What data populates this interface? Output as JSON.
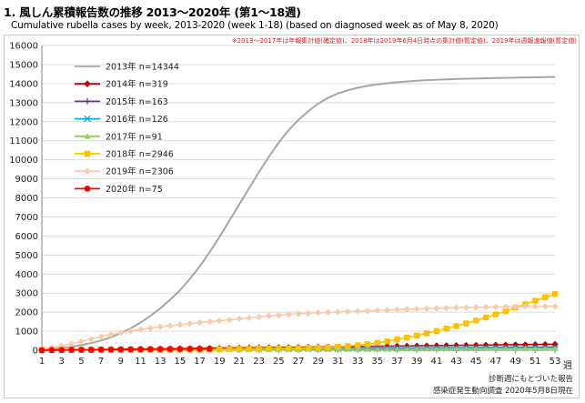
{
  "title": "1. 風しん累積報告数の推移  2013～2020年 (第1～18週)",
  "subtitle": "Cumulative rubella cases by week, 2013-2020 (week 1-18)  (based on diagnosed week as of May 8, 2020)",
  "note": "※2013～2017年は年報集計値(確定値)、2018年は2019年6月4日時点の集計値(暫定値)、2019年は週報速報値(暫定値)",
  "source_line1": "診断週にもとづいた報告",
  "source_line2": "感染症発生動向調査 2020年5月8日現在",
  "x_unit": "週",
  "chart_data": {
    "type": "line",
    "title": "1. 風しん累積報告数の推移  2013～2020年 (第1～18週)",
    "xlabel": "週",
    "ylabel": "",
    "xlim": [
      1,
      53
    ],
    "ylim": [
      0,
      16000
    ],
    "x_ticks": [
      1,
      3,
      5,
      7,
      9,
      11,
      13,
      15,
      17,
      19,
      21,
      23,
      25,
      27,
      29,
      31,
      33,
      35,
      37,
      39,
      41,
      43,
      45,
      47,
      49,
      51,
      53
    ],
    "y_ticks": [
      0,
      1000,
      2000,
      3000,
      4000,
      5000,
      6000,
      7000,
      8000,
      9000,
      10000,
      11000,
      12000,
      13000,
      14000,
      15000,
      16000
    ],
    "grid": true,
    "legend_position": "top-left",
    "series": [
      {
        "name": "2013年 n=14344",
        "color": "#a6a6a6",
        "marker": "line",
        "values": [
          40,
          70,
          110,
          180,
          270,
          380,
          510,
          680,
          900,
          1150,
          1450,
          1800,
          2200,
          2650,
          3150,
          3750,
          4400,
          5150,
          5950,
          6800,
          7650,
          8500,
          9350,
          10150,
          10900,
          11550,
          12100,
          12550,
          12950,
          13250,
          13480,
          13650,
          13780,
          13880,
          13960,
          14020,
          14070,
          14110,
          14150,
          14180,
          14200,
          14220,
          14240,
          14255,
          14270,
          14280,
          14290,
          14300,
          14310,
          14320,
          14330,
          14340,
          14344
        ]
      },
      {
        "name": "2014年 n=319",
        "color": "#c00000",
        "marker": "diamond",
        "values": [
          5,
          10,
          15,
          20,
          26,
          32,
          38,
          44,
          50,
          56,
          62,
          68,
          74,
          80,
          86,
          92,
          98,
          104,
          110,
          116,
          122,
          128,
          134,
          140,
          146,
          152,
          158,
          164,
          170,
          176,
          182,
          188,
          194,
          200,
          206,
          212,
          218,
          224,
          230,
          236,
          242,
          248,
          254,
          260,
          266,
          272,
          278,
          284,
          290,
          296,
          303,
          311,
          319
        ]
      },
      {
        "name": "2015年 n=163",
        "color": "#7030a0",
        "marker": "plus",
        "values": [
          3,
          6,
          9,
          12,
          15,
          18,
          21,
          24,
          27,
          30,
          33,
          36,
          39,
          42,
          45,
          48,
          51,
          54,
          57,
          60,
          63,
          66,
          69,
          72,
          75,
          78,
          81,
          84,
          87,
          90,
          93,
          96,
          99,
          102,
          105,
          108,
          111,
          114,
          117,
          120,
          123,
          126,
          129,
          132,
          135,
          138,
          141,
          144,
          147,
          150,
          155,
          159,
          163
        ]
      },
      {
        "name": "2016年 n=126",
        "color": "#00b0f0",
        "marker": "x",
        "values": [
          2,
          5,
          7,
          10,
          12,
          14,
          17,
          19,
          22,
          24,
          26,
          29,
          31,
          34,
          36,
          38,
          41,
          43,
          46,
          48,
          50,
          53,
          55,
          58,
          60,
          62,
          65,
          67,
          70,
          72,
          74,
          77,
          79,
          82,
          84,
          86,
          89,
          91,
          94,
          96,
          98,
          101,
          103,
          106,
          108,
          110,
          113,
          115,
          118,
          120,
          122,
          124,
          126
        ]
      },
      {
        "name": "2017年 n=91",
        "color": "#92d050",
        "marker": "triangle",
        "values": [
          2,
          3,
          5,
          7,
          9,
          10,
          12,
          14,
          16,
          17,
          19,
          21,
          23,
          24,
          26,
          28,
          30,
          31,
          33,
          35,
          37,
          38,
          40,
          42,
          44,
          45,
          47,
          49,
          51,
          52,
          54,
          56,
          58,
          59,
          61,
          63,
          65,
          66,
          68,
          70,
          72,
          73,
          75,
          77,
          79,
          80,
          82,
          84,
          86,
          87,
          89,
          90,
          91
        ]
      },
      {
        "name": "2018年 n=2946",
        "color": "#ffc000",
        "marker": "square",
        "values": [
          3,
          5,
          8,
          10,
          13,
          16,
          19,
          22,
          25,
          28,
          31,
          34,
          37,
          40,
          44,
          48,
          52,
          57,
          62,
          67,
          73,
          79,
          86,
          93,
          100,
          108,
          116,
          126,
          138,
          155,
          180,
          215,
          262,
          320,
          390,
          470,
          560,
          660,
          770,
          890,
          1010,
          1140,
          1270,
          1410,
          1560,
          1720,
          1880,
          2050,
          2240,
          2420,
          2600,
          2780,
          2946
        ]
      },
      {
        "name": "2019年 n=2306",
        "color": "#f8cbad",
        "marker": "diamond",
        "values": [
          60,
          140,
          230,
          340,
          460,
          590,
          710,
          820,
          920,
          1010,
          1090,
          1160,
          1230,
          1290,
          1350,
          1400,
          1450,
          1500,
          1550,
          1600,
          1650,
          1700,
          1750,
          1800,
          1840,
          1880,
          1910,
          1940,
          1970,
          1990,
          2010,
          2030,
          2050,
          2070,
          2090,
          2110,
          2130,
          2150,
          2170,
          2185,
          2200,
          2215,
          2230,
          2240,
          2250,
          2260,
          2270,
          2278,
          2285,
          2290,
          2296,
          2301,
          2306
        ]
      },
      {
        "name": "2020年 n=75",
        "color": "#ff0000",
        "marker": "circle",
        "values": [
          4,
          8,
          13,
          18,
          23,
          27,
          32,
          36,
          41,
          45,
          50,
          54,
          58,
          62,
          65,
          68,
          71,
          75
        ]
      }
    ]
  }
}
